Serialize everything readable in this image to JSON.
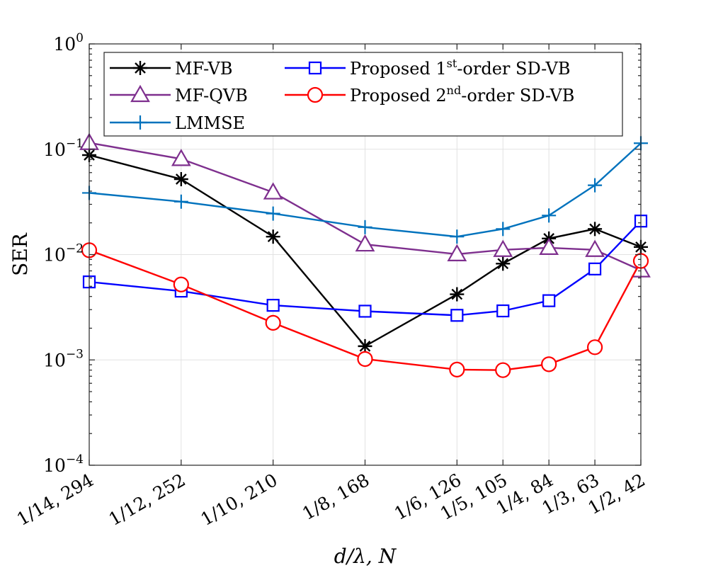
{
  "chart_data": {
    "type": "line",
    "xlabel": "d/λ, N",
    "ylabel": "SER",
    "yscale": "log",
    "ylim": [
      0.0001,
      1
    ],
    "y_ticks": [
      {
        "value": 0.0001,
        "base": "10",
        "exp": "−4"
      },
      {
        "value": 0.001,
        "base": "10",
        "exp": "−3"
      },
      {
        "value": 0.01,
        "base": "10",
        "exp": "−2"
      },
      {
        "value": 0.1,
        "base": "10",
        "exp": "−1"
      },
      {
        "value": 1,
        "base": "10",
        "exp": "0"
      }
    ],
    "x": [
      0.07142857,
      0.08333333,
      0.1,
      0.125,
      0.16666667,
      0.2,
      0.25,
      0.33333333,
      0.5
    ],
    "x_tick_labels": [
      "1/14, 294",
      "1/12, 252",
      "1/10, 210",
      "1/8, 168",
      "1/6, 126",
      "1/5, 105",
      "1/4, 84",
      "1/3, 63",
      "1/2, 42"
    ],
    "xscale": "reciprocal",
    "grid": true,
    "legend_position": "top",
    "series": [
      {
        "name": "MF-VB",
        "color": "#000000",
        "marker": "asterisk",
        "values": [
          0.088,
          0.052,
          0.0148,
          0.00135,
          0.0042,
          0.0082,
          0.0142,
          0.0175,
          0.0118
        ]
      },
      {
        "name": "MF-QVB",
        "color": "#7E2F8E",
        "marker": "triangle",
        "values": [
          0.115,
          0.081,
          0.039,
          0.0125,
          0.0101,
          0.0111,
          0.0116,
          0.0111,
          0.0071
        ]
      },
      {
        "name": "LMMSE",
        "color": "#0072BD",
        "marker": "plus",
        "values": [
          0.0385,
          0.0318,
          0.0245,
          0.0182,
          0.0148,
          0.0175,
          0.0235,
          0.0455,
          0.114
        ]
      },
      {
        "name": "Proposed 1st-order SD-VB",
        "color": "#0000FF",
        "marker": "square",
        "values": [
          0.0055,
          0.0045,
          0.0033,
          0.0029,
          0.00265,
          0.00292,
          0.00365,
          0.0073,
          0.0208
        ]
      },
      {
        "name": "Proposed 2nd-order SD-VB",
        "color": "#FF0000",
        "marker": "circle",
        "values": [
          0.011,
          0.0052,
          0.00225,
          0.00102,
          0.00081,
          0.0008,
          0.00091,
          0.00132,
          0.0087
        ]
      }
    ],
    "legend": [
      {
        "pre": "MF-VB",
        "sup": "",
        "post": ""
      },
      {
        "pre": "MF-QVB",
        "sup": "",
        "post": ""
      },
      {
        "pre": "LMMSE",
        "sup": "",
        "post": ""
      },
      {
        "pre": "Proposed 1",
        "sup": "st",
        "post": "-order SD-VB"
      },
      {
        "pre": "Proposed 2",
        "sup": "nd",
        "post": "-order SD-VB"
      }
    ]
  }
}
